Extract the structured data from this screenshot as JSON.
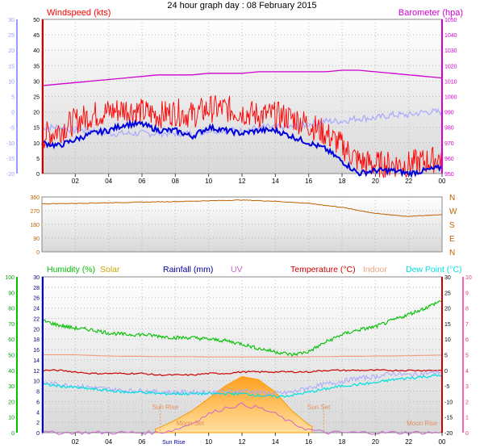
{
  "title": "24 hour graph day : 08 February 2015",
  "x_ticks": [
    "02",
    "04",
    "06",
    "08",
    "10",
    "12",
    "14",
    "16",
    "18",
    "20",
    "22",
    "00"
  ],
  "colors": {
    "windspeed": "#ff0000",
    "wind_avg": "#0000dd",
    "temp_light": "#a8a8ff",
    "barometer": "#d000d0",
    "direction": "#c06000",
    "humidity": "#00c000",
    "solar": "#c8a800",
    "rainfall": "#0000a0",
    "uv": "#cc66cc",
    "temperature": "#cc0000",
    "indoor": "#f0a080",
    "dewpoint": "#00e0e0",
    "sun": "#ffb040"
  },
  "chart_data": [
    {
      "type": "line",
      "name": "wind-barometer",
      "left_label": "Windspeed (kts)",
      "right_label": "Barometer (hpa)",
      "left_ticks": [
        "50",
        "45",
        "40",
        "35",
        "30",
        "25",
        "20",
        "15",
        "10",
        "5",
        "0"
      ],
      "right_ticks": [
        "1050",
        "1040",
        "1030",
        "1020",
        "1010",
        "1000",
        "990",
        "980",
        "970",
        "960",
        "950"
      ],
      "far_left_ticks": [
        "30",
        "25",
        "20",
        "15",
        "10",
        "5",
        "0",
        "-5",
        "-10",
        "-15",
        "-20"
      ],
      "x": [
        0,
        1,
        2,
        3,
        4,
        5,
        6,
        7,
        8,
        9,
        10,
        11,
        12,
        13,
        14,
        15,
        16,
        17,
        18,
        19,
        20,
        21,
        22,
        23,
        24
      ],
      "series": [
        {
          "name": "Windspeed",
          "values": [
            12,
            14,
            17,
            19,
            20,
            21,
            20,
            19,
            20,
            19,
            21,
            21,
            20,
            19,
            19,
            18,
            16,
            13,
            9,
            4,
            3,
            3,
            3,
            4,
            5
          ]
        },
        {
          "name": "Average",
          "values": [
            10,
            9,
            11,
            13,
            14,
            16,
            16,
            14,
            14,
            12,
            15,
            14,
            13,
            14,
            14,
            12,
            10,
            8,
            4,
            0,
            1,
            1,
            0,
            1,
            2
          ]
        },
        {
          "name": "Barometer",
          "values": [
            1007,
            1008,
            1009,
            1010,
            1011,
            1012,
            1013,
            1014,
            1014,
            1014,
            1015,
            1015,
            1015,
            1016,
            1016,
            1016,
            1016,
            1016,
            1017,
            1017,
            1016,
            1015,
            1014,
            1013,
            1012
          ]
        },
        {
          "name": "Temperature",
          "values": [
            -5,
            -5,
            -6,
            -6,
            -7,
            -7,
            -7,
            -7,
            -7,
            -7,
            -6,
            -6,
            -6,
            -5,
            -5,
            -5,
            -4,
            -3,
            -3,
            -2,
            -2,
            -1,
            -1,
            0,
            0
          ]
        }
      ]
    },
    {
      "type": "line",
      "name": "wind-direction",
      "left_ticks": [
        "360",
        "270",
        "180",
        "90",
        "0"
      ],
      "right_ticks": [
        "N",
        "W",
        "S",
        "E",
        "N"
      ],
      "x": [
        0,
        2,
        4,
        6,
        8,
        10,
        12,
        14,
        16,
        18,
        20,
        22,
        24
      ],
      "series": [
        {
          "name": "Direction",
          "values": [
            315,
            318,
            322,
            326,
            330,
            335,
            340,
            332,
            318,
            292,
            252,
            232,
            245
          ]
        }
      ]
    },
    {
      "type": "line",
      "name": "temp-humidity",
      "legend": [
        "Humidity (%)",
        "Solar",
        "Rainfall (mm)",
        "UV",
        "Temperature (°C)",
        "Indoor",
        "Dew Point (°C)"
      ],
      "humidity_ticks": [
        "100",
        "90",
        "80",
        "70",
        "60",
        "50",
        "40",
        "30",
        "20",
        "10",
        "0"
      ],
      "rain_ticks": [
        "30",
        "28",
        "26",
        "24",
        "22",
        "20",
        "18",
        "16",
        "14",
        "12",
        "10",
        "8",
        "6",
        "4",
        "2",
        "0"
      ],
      "temp_ticks": [
        "30",
        "25",
        "20",
        "15",
        "10",
        "5",
        "0",
        "-5",
        "-10",
        "-15",
        "-20"
      ],
      "uv_ticks": [
        "10",
        "9",
        "8",
        "7",
        "6",
        "5",
        "4",
        "3",
        "2",
        "1",
        "0"
      ],
      "annotations": {
        "sun_rise": "Sun Rise",
        "sun_set": "Sun Set",
        "moon_set": "Moon Set",
        "moon_rise": "Moon Rise",
        "sun_rise_axis": "Sun Rise"
      },
      "x": [
        0,
        1,
        2,
        3,
        4,
        5,
        6,
        7,
        8,
        9,
        10,
        11,
        12,
        13,
        14,
        15,
        16,
        17,
        18,
        19,
        20,
        21,
        22,
        23,
        24
      ],
      "series": [
        {
          "name": "Humidity",
          "values": [
            72,
            69,
            67,
            66,
            64,
            63,
            63,
            62,
            61,
            61,
            60,
            59,
            57,
            54,
            52,
            50,
            52,
            58,
            63,
            66,
            68,
            72,
            76,
            80,
            85
          ]
        },
        {
          "name": "Temperature",
          "values": [
            0,
            0,
            -0.5,
            -1,
            -1,
            -1,
            -1,
            -1.5,
            -1.5,
            -1.5,
            -1,
            -1,
            -0.5,
            -0.5,
            -0.5,
            -0.5,
            -0.5,
            0,
            0,
            0,
            0,
            0,
            0,
            0,
            0
          ]
        },
        {
          "name": "Indoor",
          "values": [
            5,
            5,
            5,
            4.8,
            4.6,
            4.5,
            4.5,
            4.4,
            4.4,
            4.4,
            4.3,
            4.3,
            4.3,
            4.3,
            4.3,
            4.3,
            4.4,
            4.4,
            4.5,
            4.5,
            4.6,
            4.6,
            4.7,
            4.8,
            4.9
          ]
        },
        {
          "name": "Dew Point",
          "values": [
            -4.5,
            -5,
            -5.5,
            -6,
            -6.5,
            -7,
            -7,
            -7.5,
            -7.5,
            -7.5,
            -7.5,
            -7.5,
            -7.5,
            -8,
            -8.5,
            -8,
            -7,
            -6,
            -5,
            -4.5,
            -4,
            -3,
            -2.5,
            -2,
            -1.5
          ]
        },
        {
          "name": "Temp (light)",
          "values": [
            -4,
            -4.5,
            -5,
            -5.5,
            -6,
            -6.5,
            -6.5,
            -7,
            -7,
            -7,
            -7,
            -7,
            -6.5,
            -7,
            -7.5,
            -7,
            -5.5,
            -4.5,
            -3.5,
            -2.5,
            -2,
            -1,
            -1.5,
            -1,
            -0.5
          ]
        },
        {
          "name": "Solar",
          "values": [
            0,
            0,
            0,
            0,
            0,
            0,
            0,
            0.3,
            0.8,
            1.4,
            2.2,
            3.0,
            3.6,
            3.4,
            2.6,
            1.4,
            0.5,
            0,
            0,
            0,
            0,
            0,
            0,
            0,
            0
          ]
        },
        {
          "name": "UV",
          "values": [
            0,
            0,
            0,
            0,
            0,
            0,
            0,
            0,
            0.2,
            0.6,
            1.2,
            1.6,
            1.8,
            1.6,
            1.2,
            0.6,
            0.2,
            0,
            0,
            0,
            0,
            0,
            0,
            0,
            0
          ]
        }
      ]
    }
  ]
}
